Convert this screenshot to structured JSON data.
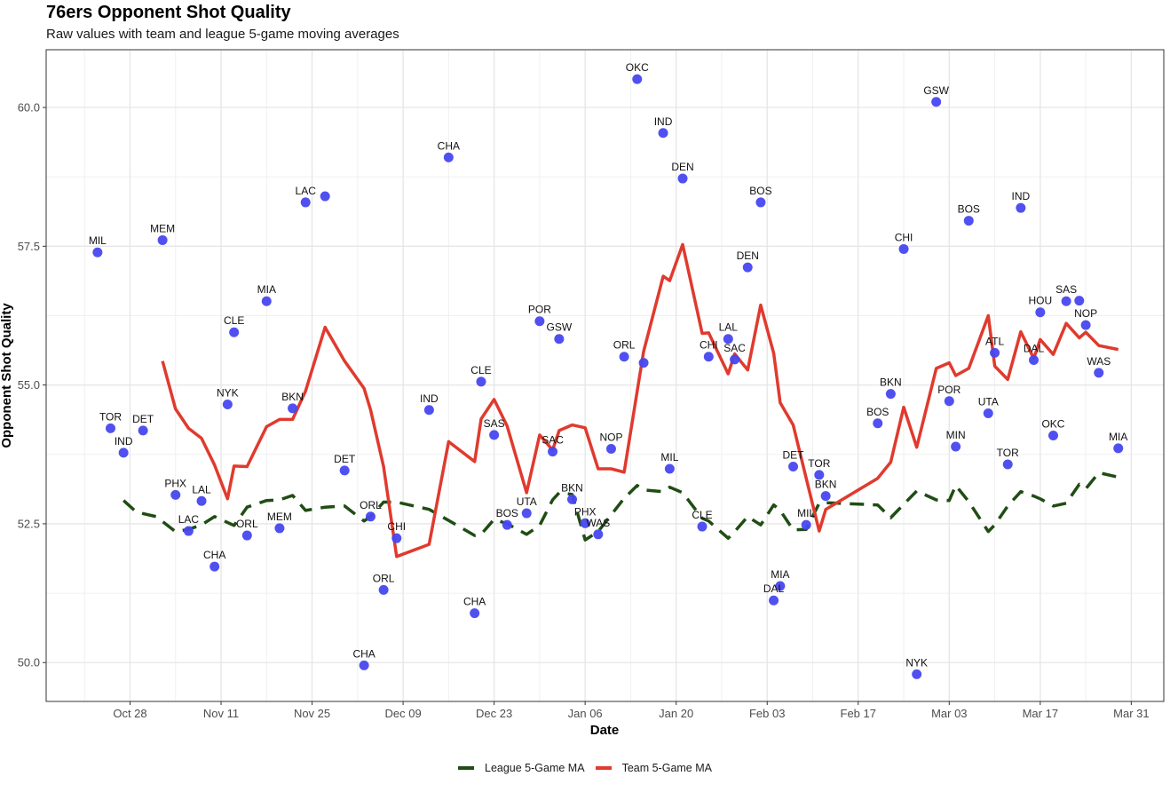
{
  "chart_data": {
    "type": "line",
    "title": "76ers Opponent Shot Quality",
    "subtitle": "Raw values with team and league 5-game moving averages",
    "xlabel": "Date",
    "ylabel": "Opponent Shot Quality",
    "x_ticks": [
      "Oct 28",
      "Nov 11",
      "Nov 25",
      "Dec 09",
      "Dec 23",
      "Jan 06",
      "Jan 20",
      "Feb 03",
      "Feb 17",
      "Mar 03",
      "Mar 17",
      "Mar 31"
    ],
    "x_tick_days": [
      0,
      14,
      28,
      42,
      56,
      70,
      84,
      98,
      112,
      126,
      140,
      154
    ],
    "x_origin": "Oct 28",
    "xlim_days": [
      -12.9,
      159
    ],
    "y_ticks": [
      "50.0",
      "52.5",
      "55.0",
      "57.5",
      "60.0"
    ],
    "y_tick_values": [
      50.0,
      52.5,
      55.0,
      57.5,
      60.0
    ],
    "ylim": [
      49.3,
      61.04
    ],
    "grid": true,
    "legend_position": "bottom",
    "colors": {
      "points": "#4747f0",
      "team": "#e03a2e",
      "league": "#1f4d14"
    },
    "points": [
      {
        "date": "Oct 23",
        "day": -5,
        "value": 57.39,
        "opponent": "MIL"
      },
      {
        "date": "Oct 25",
        "day": -3,
        "value": 54.22,
        "opponent": "TOR"
      },
      {
        "date": "Oct 27",
        "day": -1,
        "value": 53.78,
        "opponent": "IND"
      },
      {
        "date": "Oct 30",
        "day": 2,
        "value": 54.18,
        "opponent": "DET"
      },
      {
        "date": "Nov 02",
        "day": 5,
        "value": 57.61,
        "opponent": "MEM"
      },
      {
        "date": "Nov 04",
        "day": 7,
        "value": 53.02,
        "opponent": "PHX"
      },
      {
        "date": "Nov 06",
        "day": 9,
        "value": 52.37,
        "opponent": "LAC"
      },
      {
        "date": "Nov 08",
        "day": 11,
        "value": 52.91,
        "opponent": "LAL"
      },
      {
        "date": "Nov 10",
        "day": 13,
        "value": 51.73,
        "opponent": "CHA"
      },
      {
        "date": "Nov 12",
        "day": 15,
        "value": 54.65,
        "opponent": "NYK"
      },
      {
        "date": "Nov 13",
        "day": 16,
        "value": 55.95,
        "opponent": "CLE"
      },
      {
        "date": "Nov 15",
        "day": 18,
        "value": 52.29,
        "opponent": "ORL"
      },
      {
        "date": "Nov 18",
        "day": 21,
        "value": 56.51,
        "opponent": "MIA"
      },
      {
        "date": "Nov 20",
        "day": 23,
        "value": 52.42,
        "opponent": "MEM"
      },
      {
        "date": "Nov 22",
        "day": 25,
        "value": 54.58,
        "opponent": "BKN"
      },
      {
        "date": "Nov 24",
        "day": 27,
        "value": 58.29,
        "opponent": "LAC"
      },
      {
        "date": "Nov 27",
        "day": 30,
        "value": 58.4,
        "opponent": ""
      },
      {
        "date": "Nov 30",
        "day": 33,
        "value": 53.46,
        "opponent": "DET"
      },
      {
        "date": "Dec 03",
        "day": 36,
        "value": 49.95,
        "opponent": "CHA"
      },
      {
        "date": "Dec 04",
        "day": 37,
        "value": 52.63,
        "opponent": "ORL"
      },
      {
        "date": "Dec 06",
        "day": 39,
        "value": 51.31,
        "opponent": "ORL"
      },
      {
        "date": "Dec 08",
        "day": 41,
        "value": 52.24,
        "opponent": "CHI"
      },
      {
        "date": "Dec 13",
        "day": 46,
        "value": 54.55,
        "opponent": "IND"
      },
      {
        "date": "Dec 16",
        "day": 49,
        "value": 59.1,
        "opponent": "CHA"
      },
      {
        "date": "Dec 20",
        "day": 53,
        "value": 50.89,
        "opponent": "CHA"
      },
      {
        "date": "Dec 21",
        "day": 54,
        "value": 55.06,
        "opponent": "CLE"
      },
      {
        "date": "Dec 23",
        "day": 56,
        "value": 54.1,
        "opponent": "SAS"
      },
      {
        "date": "Dec 25",
        "day": 58,
        "value": 52.48,
        "opponent": "BOS"
      },
      {
        "date": "Dec 28",
        "day": 61,
        "value": 52.69,
        "opponent": "UTA"
      },
      {
        "date": "Dec 30",
        "day": 63,
        "value": 56.15,
        "opponent": "POR"
      },
      {
        "date": "Jan 01",
        "day": 65,
        "value": 53.8,
        "opponent": "SAC"
      },
      {
        "date": "Jan 02",
        "day": 66,
        "value": 55.83,
        "opponent": "GSW"
      },
      {
        "date": "Jan 04",
        "day": 68,
        "value": 52.94,
        "opponent": "BKN"
      },
      {
        "date": "Jan 06",
        "day": 70,
        "value": 52.51,
        "opponent": "PHX"
      },
      {
        "date": "Jan 08",
        "day": 72,
        "value": 52.31,
        "opponent": "WAS"
      },
      {
        "date": "Jan 10",
        "day": 74,
        "value": 53.85,
        "opponent": "NOP"
      },
      {
        "date": "Jan 12",
        "day": 76,
        "value": 55.51,
        "opponent": "ORL"
      },
      {
        "date": "Jan 14",
        "day": 78,
        "value": 60.51,
        "opponent": "OKC"
      },
      {
        "date": "Jan 15",
        "day": 79,
        "value": 55.4,
        "opponent": ""
      },
      {
        "date": "Jan 18",
        "day": 82,
        "value": 59.54,
        "opponent": "IND"
      },
      {
        "date": "Jan 19",
        "day": 83,
        "value": 53.49,
        "opponent": "MIL"
      },
      {
        "date": "Jan 21",
        "day": 85,
        "value": 58.72,
        "opponent": "DEN"
      },
      {
        "date": "Jan 24",
        "day": 88,
        "value": 52.45,
        "opponent": "CLE"
      },
      {
        "date": "Jan 25",
        "day": 89,
        "value": 55.51,
        "opponent": "CHI"
      },
      {
        "date": "Jan 28",
        "day": 92,
        "value": 55.83,
        "opponent": "LAL"
      },
      {
        "date": "Jan 29",
        "day": 93,
        "value": 55.46,
        "opponent": "SAC"
      },
      {
        "date": "Jan 31",
        "day": 95,
        "value": 57.12,
        "opponent": "DEN"
      },
      {
        "date": "Feb 02",
        "day": 97,
        "value": 58.29,
        "opponent": "BOS"
      },
      {
        "date": "Feb 04",
        "day": 99,
        "value": 51.12,
        "opponent": "DAL"
      },
      {
        "date": "Feb 05",
        "day": 100,
        "value": 51.38,
        "opponent": "MIA"
      },
      {
        "date": "Feb 07",
        "day": 102,
        "value": 53.53,
        "opponent": "DET"
      },
      {
        "date": "Feb 09",
        "day": 104,
        "value": 52.48,
        "opponent": "MIL"
      },
      {
        "date": "Feb 11",
        "day": 106,
        "value": 53.38,
        "opponent": "TOR"
      },
      {
        "date": "Feb 12",
        "day": 107,
        "value": 53.0,
        "opponent": "BKN"
      },
      {
        "date": "Feb 20",
        "day": 115,
        "value": 54.31,
        "opponent": "BOS"
      },
      {
        "date": "Feb 22",
        "day": 117,
        "value": 54.84,
        "opponent": "BKN"
      },
      {
        "date": "Feb 24",
        "day": 119,
        "value": 57.45,
        "opponent": "CHI"
      },
      {
        "date": "Feb 26",
        "day": 121,
        "value": 49.79,
        "opponent": "NYK"
      },
      {
        "date": "Mar 01",
        "day": 124,
        "value": 60.1,
        "opponent": "GSW"
      },
      {
        "date": "Mar 03",
        "day": 126,
        "value": 54.71,
        "opponent": "POR"
      },
      {
        "date": "Mar 04",
        "day": 127,
        "value": 53.89,
        "opponent": "MIN"
      },
      {
        "date": "Mar 06",
        "day": 129,
        "value": 57.96,
        "opponent": "BOS"
      },
      {
        "date": "Mar 09",
        "day": 132,
        "value": 54.49,
        "opponent": "UTA"
      },
      {
        "date": "Mar 10",
        "day": 133,
        "value": 55.58,
        "opponent": "ATL"
      },
      {
        "date": "Mar 12",
        "day": 135,
        "value": 53.57,
        "opponent": "TOR"
      },
      {
        "date": "Mar 14",
        "day": 137,
        "value": 58.19,
        "opponent": "IND"
      },
      {
        "date": "Mar 16",
        "day": 139,
        "value": 55.45,
        "opponent": "DAL"
      },
      {
        "date": "Mar 17",
        "day": 140,
        "value": 56.31,
        "opponent": "HOU"
      },
      {
        "date": "Mar 19",
        "day": 142,
        "value": 54.09,
        "opponent": "OKC"
      },
      {
        "date": "Mar 21",
        "day": 144,
        "value": 56.51,
        "opponent": "SAS"
      },
      {
        "date": "Mar 23",
        "day": 146,
        "value": 56.52,
        "opponent": ""
      },
      {
        "date": "Mar 24",
        "day": 147,
        "value": 56.08,
        "opponent": "NOP"
      },
      {
        "date": "Mar 26",
        "day": 149,
        "value": 55.22,
        "opponent": "WAS"
      },
      {
        "date": "Mar 29",
        "day": 152,
        "value": 53.86,
        "opponent": "MIA"
      }
    ],
    "series": [
      {
        "name": "League 5-Game MA",
        "style": "dashed",
        "days": [
          -1,
          1,
          4,
          7,
          9,
          11,
          13,
          16,
          18,
          21,
          23,
          25,
          27,
          30,
          33,
          36,
          37,
          39,
          41,
          46,
          49,
          53,
          54,
          56,
          58,
          61,
          63,
          65,
          66,
          68,
          70,
          72,
          74,
          76,
          78,
          79,
          82,
          83,
          85,
          88,
          89,
          92,
          93,
          95,
          97,
          99,
          100,
          102,
          104,
          106,
          107,
          115,
          117,
          119,
          121,
          124,
          126,
          127,
          129,
          132,
          133,
          135,
          137,
          139,
          140,
          142,
          144,
          146,
          147,
          149,
          152
        ],
        "values": [
          52.92,
          52.71,
          52.63,
          52.36,
          52.4,
          52.48,
          52.63,
          52.47,
          52.8,
          52.92,
          52.93,
          53.01,
          52.74,
          52.8,
          52.82,
          52.55,
          52.63,
          52.89,
          52.89,
          52.76,
          52.56,
          52.29,
          52.31,
          52.58,
          52.5,
          52.31,
          52.47,
          52.93,
          53.06,
          53.03,
          52.21,
          52.36,
          52.66,
          52.96,
          53.19,
          53.11,
          53.08,
          53.16,
          53.06,
          52.6,
          52.55,
          52.24,
          52.36,
          52.63,
          52.48,
          52.84,
          52.74,
          52.39,
          52.4,
          52.87,
          52.88,
          52.84,
          52.61,
          52.85,
          53.09,
          52.93,
          52.92,
          53.19,
          52.9,
          52.36,
          52.48,
          52.82,
          53.08,
          53.0,
          52.95,
          52.82,
          52.87,
          53.21,
          53.13,
          53.42,
          53.34
        ]
      },
      {
        "name": "Team 5-Game MA",
        "style": "solid",
        "days": [
          5,
          7,
          9,
          11,
          13,
          15,
          16,
          18,
          21,
          23,
          25,
          27,
          30,
          33,
          36,
          37,
          39,
          41,
          46,
          49,
          53,
          54,
          56,
          58,
          61,
          63,
          65,
          66,
          68,
          70,
          72,
          74,
          76,
          78,
          79,
          82,
          83,
          85,
          88,
          89,
          92,
          93,
          95,
          97,
          99,
          100,
          102,
          104,
          106,
          107,
          115,
          117,
          119,
          121,
          124,
          126,
          127,
          129,
          132,
          133,
          135,
          137,
          139,
          140,
          142,
          144,
          146,
          147,
          149,
          152
        ],
        "values": [
          55.43,
          54.57,
          54.22,
          54.04,
          53.56,
          52.95,
          53.54,
          53.53,
          54.25,
          54.38,
          54.38,
          54.89,
          56.04,
          55.43,
          54.94,
          54.55,
          53.53,
          51.91,
          52.13,
          53.98,
          53.62,
          54.39,
          54.74,
          54.26,
          53.06,
          54.1,
          53.83,
          54.18,
          54.28,
          54.23,
          53.49,
          53.49,
          53.43,
          54.89,
          55.61,
          56.96,
          56.88,
          57.53,
          55.93,
          55.94,
          55.2,
          55.56,
          55.27,
          56.44,
          55.57,
          54.68,
          54.28,
          53.32,
          52.37,
          52.76,
          53.32,
          53.61,
          54.6,
          53.88,
          55.3,
          55.4,
          55.17,
          55.3,
          56.25,
          55.34,
          55.1,
          55.96,
          55.48,
          55.82,
          55.55,
          56.11,
          55.85,
          55.95,
          55.71,
          55.64
        ]
      }
    ]
  }
}
